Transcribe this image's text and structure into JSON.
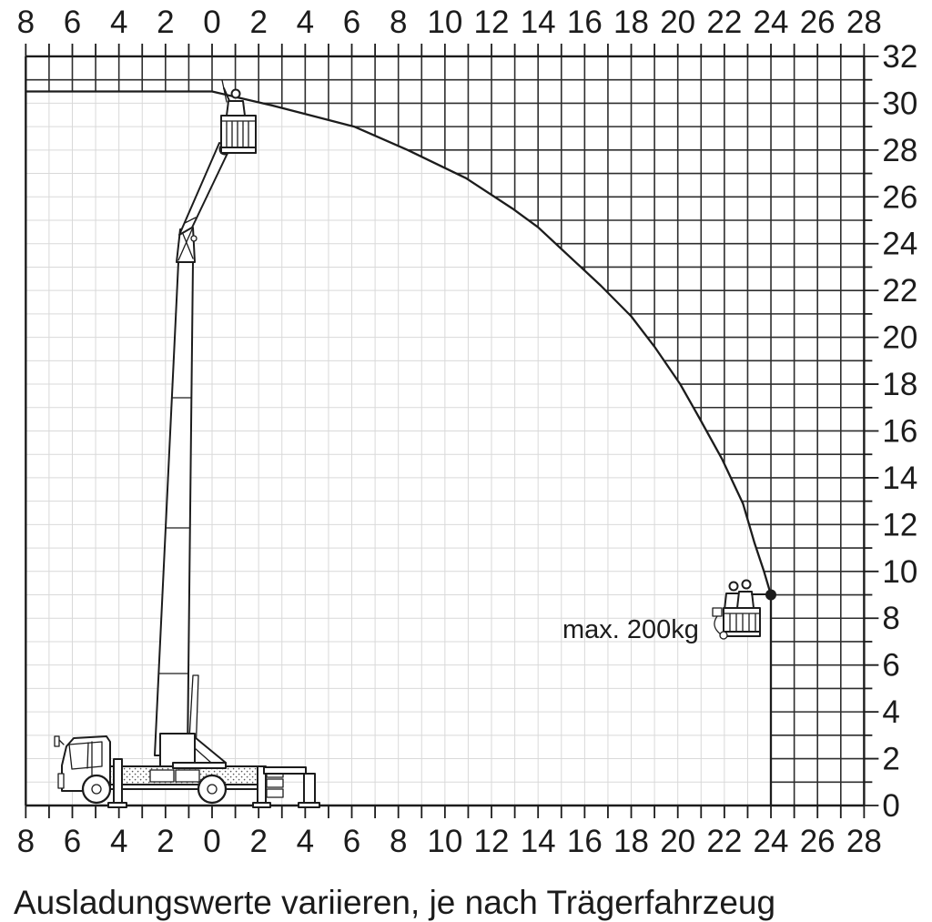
{
  "caption": "Ausladungswerte variieren, je nach Trägerfahrzeug",
  "annotation": {
    "max_load_label": "max. 200kg"
  },
  "axes": {
    "top_labels": [
      "8",
      "6",
      "4",
      "2",
      "0",
      "2",
      "4",
      "6",
      "8",
      "10",
      "12",
      "14",
      "16",
      "18",
      "20",
      "22",
      "24",
      "26",
      "28"
    ],
    "bottom_labels": [
      "8",
      "6",
      "4",
      "2",
      "0",
      "2",
      "4",
      "6",
      "8",
      "10",
      "12",
      "14",
      "16",
      "18",
      "20",
      "22",
      "24",
      "26",
      "28"
    ],
    "right_labels": [
      "32",
      "30",
      "28",
      "26",
      "24",
      "22",
      "20",
      "18",
      "16",
      "14",
      "12",
      "10",
      "8",
      "6",
      "4",
      "2",
      "0"
    ],
    "x_min_m": -8,
    "x_max_m": 28,
    "y_min_m": 0,
    "y_max_m": 32,
    "grid_step_m": 1,
    "label_step_m": 2
  },
  "chart_data": {
    "type": "line",
    "title": "",
    "xlabel": "",
    "ylabel": "",
    "grid": "on",
    "legend": "none",
    "x_range": [
      -8,
      28
    ],
    "y_range": [
      0,
      32
    ],
    "series": [
      {
        "name": "working-envelope-boundary",
        "x_outreach_m": [
          0,
          2.6,
          6.1,
          8.4,
          10.9,
          12.9,
          14.0,
          16.7,
          18.0,
          19.0,
          20.1,
          20.9,
          21.9,
          22.8,
          23.3,
          23.7,
          24.0
        ],
        "y_height_m": [
          30.5,
          29.9,
          29.0,
          28.0,
          26.8,
          25.5,
          24.7,
          22.2,
          20.9,
          19.6,
          18.0,
          16.6,
          14.8,
          12.9,
          11.2,
          10.0,
          9.0
        ]
      }
    ],
    "endpoint_marker": {
      "x_m": 24,
      "y_m": 9
    },
    "max_platform_height_m": 30.5,
    "max_outreach_m": 24,
    "annotations": [
      {
        "text": "max. 200kg",
        "x_m": 18.6,
        "y_m": 7.3
      }
    ]
  },
  "icons": {
    "truck": "truck-with-telescopic-boom-icon",
    "top_basket": "work-basket-with-worker-icon",
    "right_basket": "work-basket-with-two-workers-icon",
    "endpoint": "max-outreach-point-dot"
  },
  "colors": {
    "ink": "#1c1c1c",
    "grid_light": "#d9d9d9",
    "grid_dark": "#2e2e2e",
    "background": "#ffffff"
  }
}
